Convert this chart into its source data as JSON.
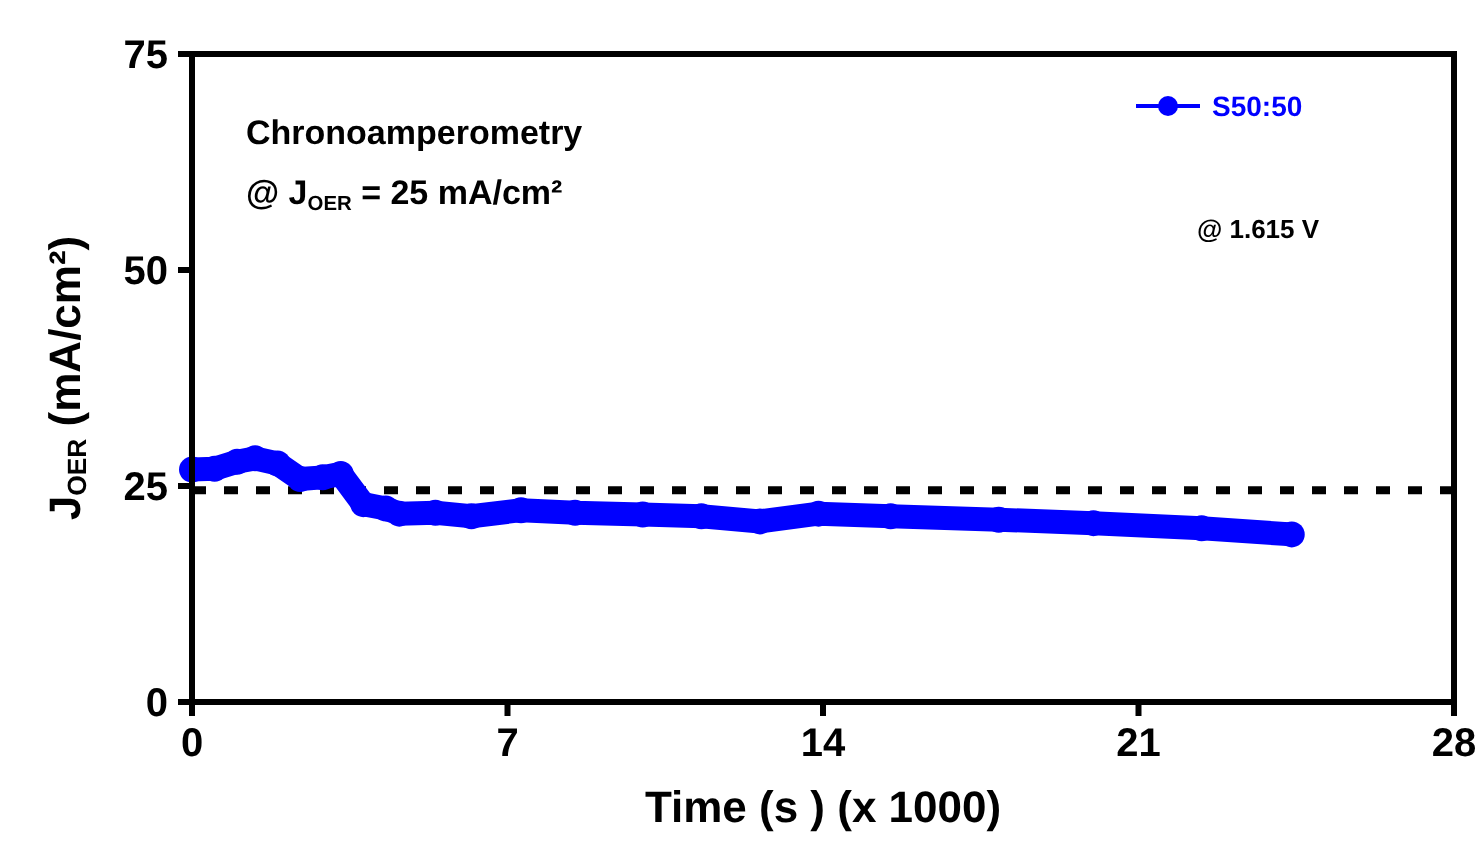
{
  "chart_data": {
    "type": "line",
    "xlabel": "Time (s ) (x 1000)",
    "ylabel": "J$_{OER}$ (mA/cm²)",
    "xlim": [
      0,
      28
    ],
    "xticks": [
      0,
      7,
      14,
      21,
      28
    ],
    "ylim": [
      0,
      75
    ],
    "yticks": [
      0,
      25,
      50,
      75
    ],
    "x": [
      0,
      0.5,
      1,
      1.4,
      1.9,
      2.4,
      2.9,
      3.3,
      3.8,
      4.3,
      4.6,
      5.4,
      6.2,
      7.3,
      8.5,
      10,
      11.3,
      12.6,
      13.9,
      15.5,
      17.9,
      20,
      22.4,
      24.4
    ],
    "series": [
      {
        "name": "S50:50",
        "color": "#0000ff",
        "values": [
          26.9,
          27,
          27.8,
          28.2,
          27.6,
          25.8,
          26,
          26.4,
          22.9,
          22.4,
          21.8,
          21.9,
          21.5,
          22.2,
          21.9,
          21.7,
          21.5,
          20.9,
          21.8,
          21.5,
          21.1,
          20.7,
          20.1,
          19.4
        ]
      }
    ],
    "marker": "circle",
    "line_style": "solid",
    "legend": "top right",
    "grid": false,
    "ref_lines": [
      {
        "axis": "y",
        "value": 24.5,
        "color": "#000000",
        "line_style": "dotted"
      }
    ],
    "annotations": [
      "Chronoamperometry",
      "@ J$_{OER}$ = 25 mA/cm²",
      "@ 1.615 V"
    ]
  }
}
